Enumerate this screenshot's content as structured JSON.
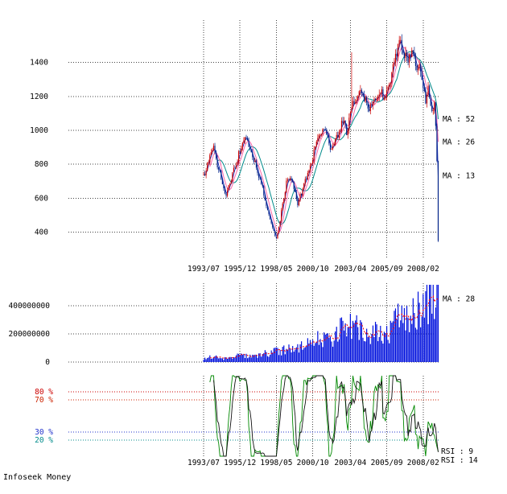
{
  "page": {
    "footer": "Infoseek Money"
  },
  "colors": {
    "background": "#ffffff",
    "grid": "#444444",
    "text": "#000000"
  },
  "chart_data": [
    {
      "type": "candlestick",
      "panel": "price",
      "months": 188,
      "x_tick_labels": [
        "1993/07",
        "1995/12",
        "1998/05",
        "2000/10",
        "2003/04",
        "2005/09",
        "2008/02"
      ],
      "x_tick_months": [
        0,
        29,
        58,
        87,
        117,
        146,
        175
      ],
      "y_ticks": [
        400,
        600,
        800,
        1000,
        1200,
        1400
      ],
      "ylim": [
        250,
        1650
      ],
      "grid": true,
      "up_color": "#cc0000",
      "down_color": "#002288",
      "ma_series": [
        {
          "label": "MA : 52",
          "period": 52,
          "color": "#008b8b"
        },
        {
          "label": "MA : 26",
          "period": 26,
          "color": "#ff66aa"
        },
        {
          "label": "MA : 13",
          "period": 13,
          "color": "#2233bb"
        }
      ],
      "close_anchors": [
        [
          0,
          730
        ],
        [
          3,
          790
        ],
        [
          6,
          870
        ],
        [
          8,
          900
        ],
        [
          10,
          820
        ],
        [
          13,
          750
        ],
        [
          16,
          650
        ],
        [
          18,
          610
        ],
        [
          21,
          690
        ],
        [
          24,
          760
        ],
        [
          27,
          830
        ],
        [
          29,
          880
        ],
        [
          32,
          930
        ],
        [
          35,
          950
        ],
        [
          38,
          870
        ],
        [
          42,
          780
        ],
        [
          46,
          690
        ],
        [
          50,
          560
        ],
        [
          54,
          450
        ],
        [
          57,
          380
        ],
        [
          58,
          360
        ],
        [
          60,
          430
        ],
        [
          63,
          560
        ],
        [
          66,
          690
        ],
        [
          69,
          730
        ],
        [
          72,
          660
        ],
        [
          75,
          570
        ],
        [
          78,
          630
        ],
        [
          81,
          700
        ],
        [
          84,
          770
        ],
        [
          87,
          840
        ],
        [
          90,
          920
        ],
        [
          93,
          980
        ],
        [
          96,
          1010
        ],
        [
          99,
          940
        ],
        [
          102,
          880
        ],
        [
          105,
          930
        ],
        [
          108,
          1000
        ],
        [
          111,
          1060
        ],
        [
          114,
          990
        ],
        [
          117,
          1090
        ],
        [
          119,
          1150
        ],
        [
          121,
          1180
        ],
        [
          123,
          1200
        ],
        [
          126,
          1250
        ],
        [
          129,
          1170
        ],
        [
          132,
          1110
        ],
        [
          135,
          1160
        ],
        [
          138,
          1210
        ],
        [
          141,
          1240
        ],
        [
          144,
          1190
        ],
        [
          146,
          1210
        ],
        [
          149,
          1290
        ],
        [
          152,
          1400
        ],
        [
          155,
          1500
        ],
        [
          157,
          1540
        ],
        [
          160,
          1450
        ],
        [
          163,
          1380
        ],
        [
          166,
          1500
        ],
        [
          168,
          1450
        ],
        [
          170,
          1350
        ],
        [
          172,
          1420
        ],
        [
          174,
          1300
        ],
        [
          175,
          1250
        ],
        [
          177,
          1180
        ],
        [
          179,
          1280
        ],
        [
          181,
          1150
        ],
        [
          183,
          1100
        ],
        [
          184,
          1150
        ],
        [
          185,
          1050
        ],
        [
          186,
          800
        ],
        [
          187,
          340
        ]
      ],
      "spike_highs": [
        [
          118,
          1460
        ]
      ]
    },
    {
      "type": "bar",
      "panel": "volume",
      "y_ticks": [
        0,
        200000000,
        400000000
      ],
      "ylim": [
        0,
        560000000
      ],
      "bar_color": "#0011dd",
      "ma": {
        "label": "MA : 28",
        "period": 28,
        "color": "#ff0000"
      },
      "volume_anchors_millions": [
        [
          0,
          25
        ],
        [
          6,
          35
        ],
        [
          12,
          30
        ],
        [
          18,
          25
        ],
        [
          24,
          40
        ],
        [
          30,
          45
        ],
        [
          36,
          40
        ],
        [
          42,
          35
        ],
        [
          48,
          55
        ],
        [
          54,
          65
        ],
        [
          58,
          85
        ],
        [
          60,
          70
        ],
        [
          66,
          95
        ],
        [
          72,
          85
        ],
        [
          78,
          105
        ],
        [
          84,
          125
        ],
        [
          87,
          145
        ],
        [
          90,
          165
        ],
        [
          93,
          185
        ],
        [
          96,
          170
        ],
        [
          99,
          150
        ],
        [
          102,
          135
        ],
        [
          105,
          165
        ],
        [
          108,
          205
        ],
        [
          111,
          225
        ],
        [
          114,
          195
        ],
        [
          117,
          255
        ],
        [
          120,
          235
        ],
        [
          123,
          215
        ],
        [
          126,
          195
        ],
        [
          129,
          175
        ],
        [
          132,
          165
        ],
        [
          135,
          185
        ],
        [
          138,
          205
        ],
        [
          141,
          195
        ],
        [
          144,
          175
        ],
        [
          146,
          185
        ],
        [
          149,
          225
        ],
        [
          152,
          285
        ],
        [
          155,
          355
        ],
        [
          158,
          305
        ],
        [
          161,
          285
        ],
        [
          164,
          335
        ],
        [
          167,
          385
        ],
        [
          170,
          365
        ],
        [
          173,
          325
        ],
        [
          175,
          385
        ],
        [
          177,
          425
        ],
        [
          179,
          405
        ],
        [
          181,
          445
        ],
        [
          183,
          425
        ],
        [
          185,
          485
        ],
        [
          186,
          520
        ],
        [
          187,
          440
        ]
      ]
    },
    {
      "type": "line",
      "panel": "rsi",
      "ylim": [
        0,
        100
      ],
      "levels": [
        {
          "value": 80,
          "label": "80 %",
          "color": "#cc0000"
        },
        {
          "value": 70,
          "label": "70 %",
          "color": "#cc2200"
        },
        {
          "value": 30,
          "label": "30 %",
          "color": "#2233cc"
        },
        {
          "value": 20,
          "label": "20 %",
          "color": "#008b8b"
        }
      ],
      "series": [
        {
          "label": "RSI : 9",
          "period": 9,
          "color": "#008800"
        },
        {
          "label": "RSI : 14",
          "period": 14,
          "color": "#111111"
        }
      ],
      "x_tick_labels": [
        "1993/07",
        "1995/12",
        "1998/05",
        "2000/10",
        "2003/04",
        "2005/09",
        "2008/02"
      ]
    }
  ]
}
